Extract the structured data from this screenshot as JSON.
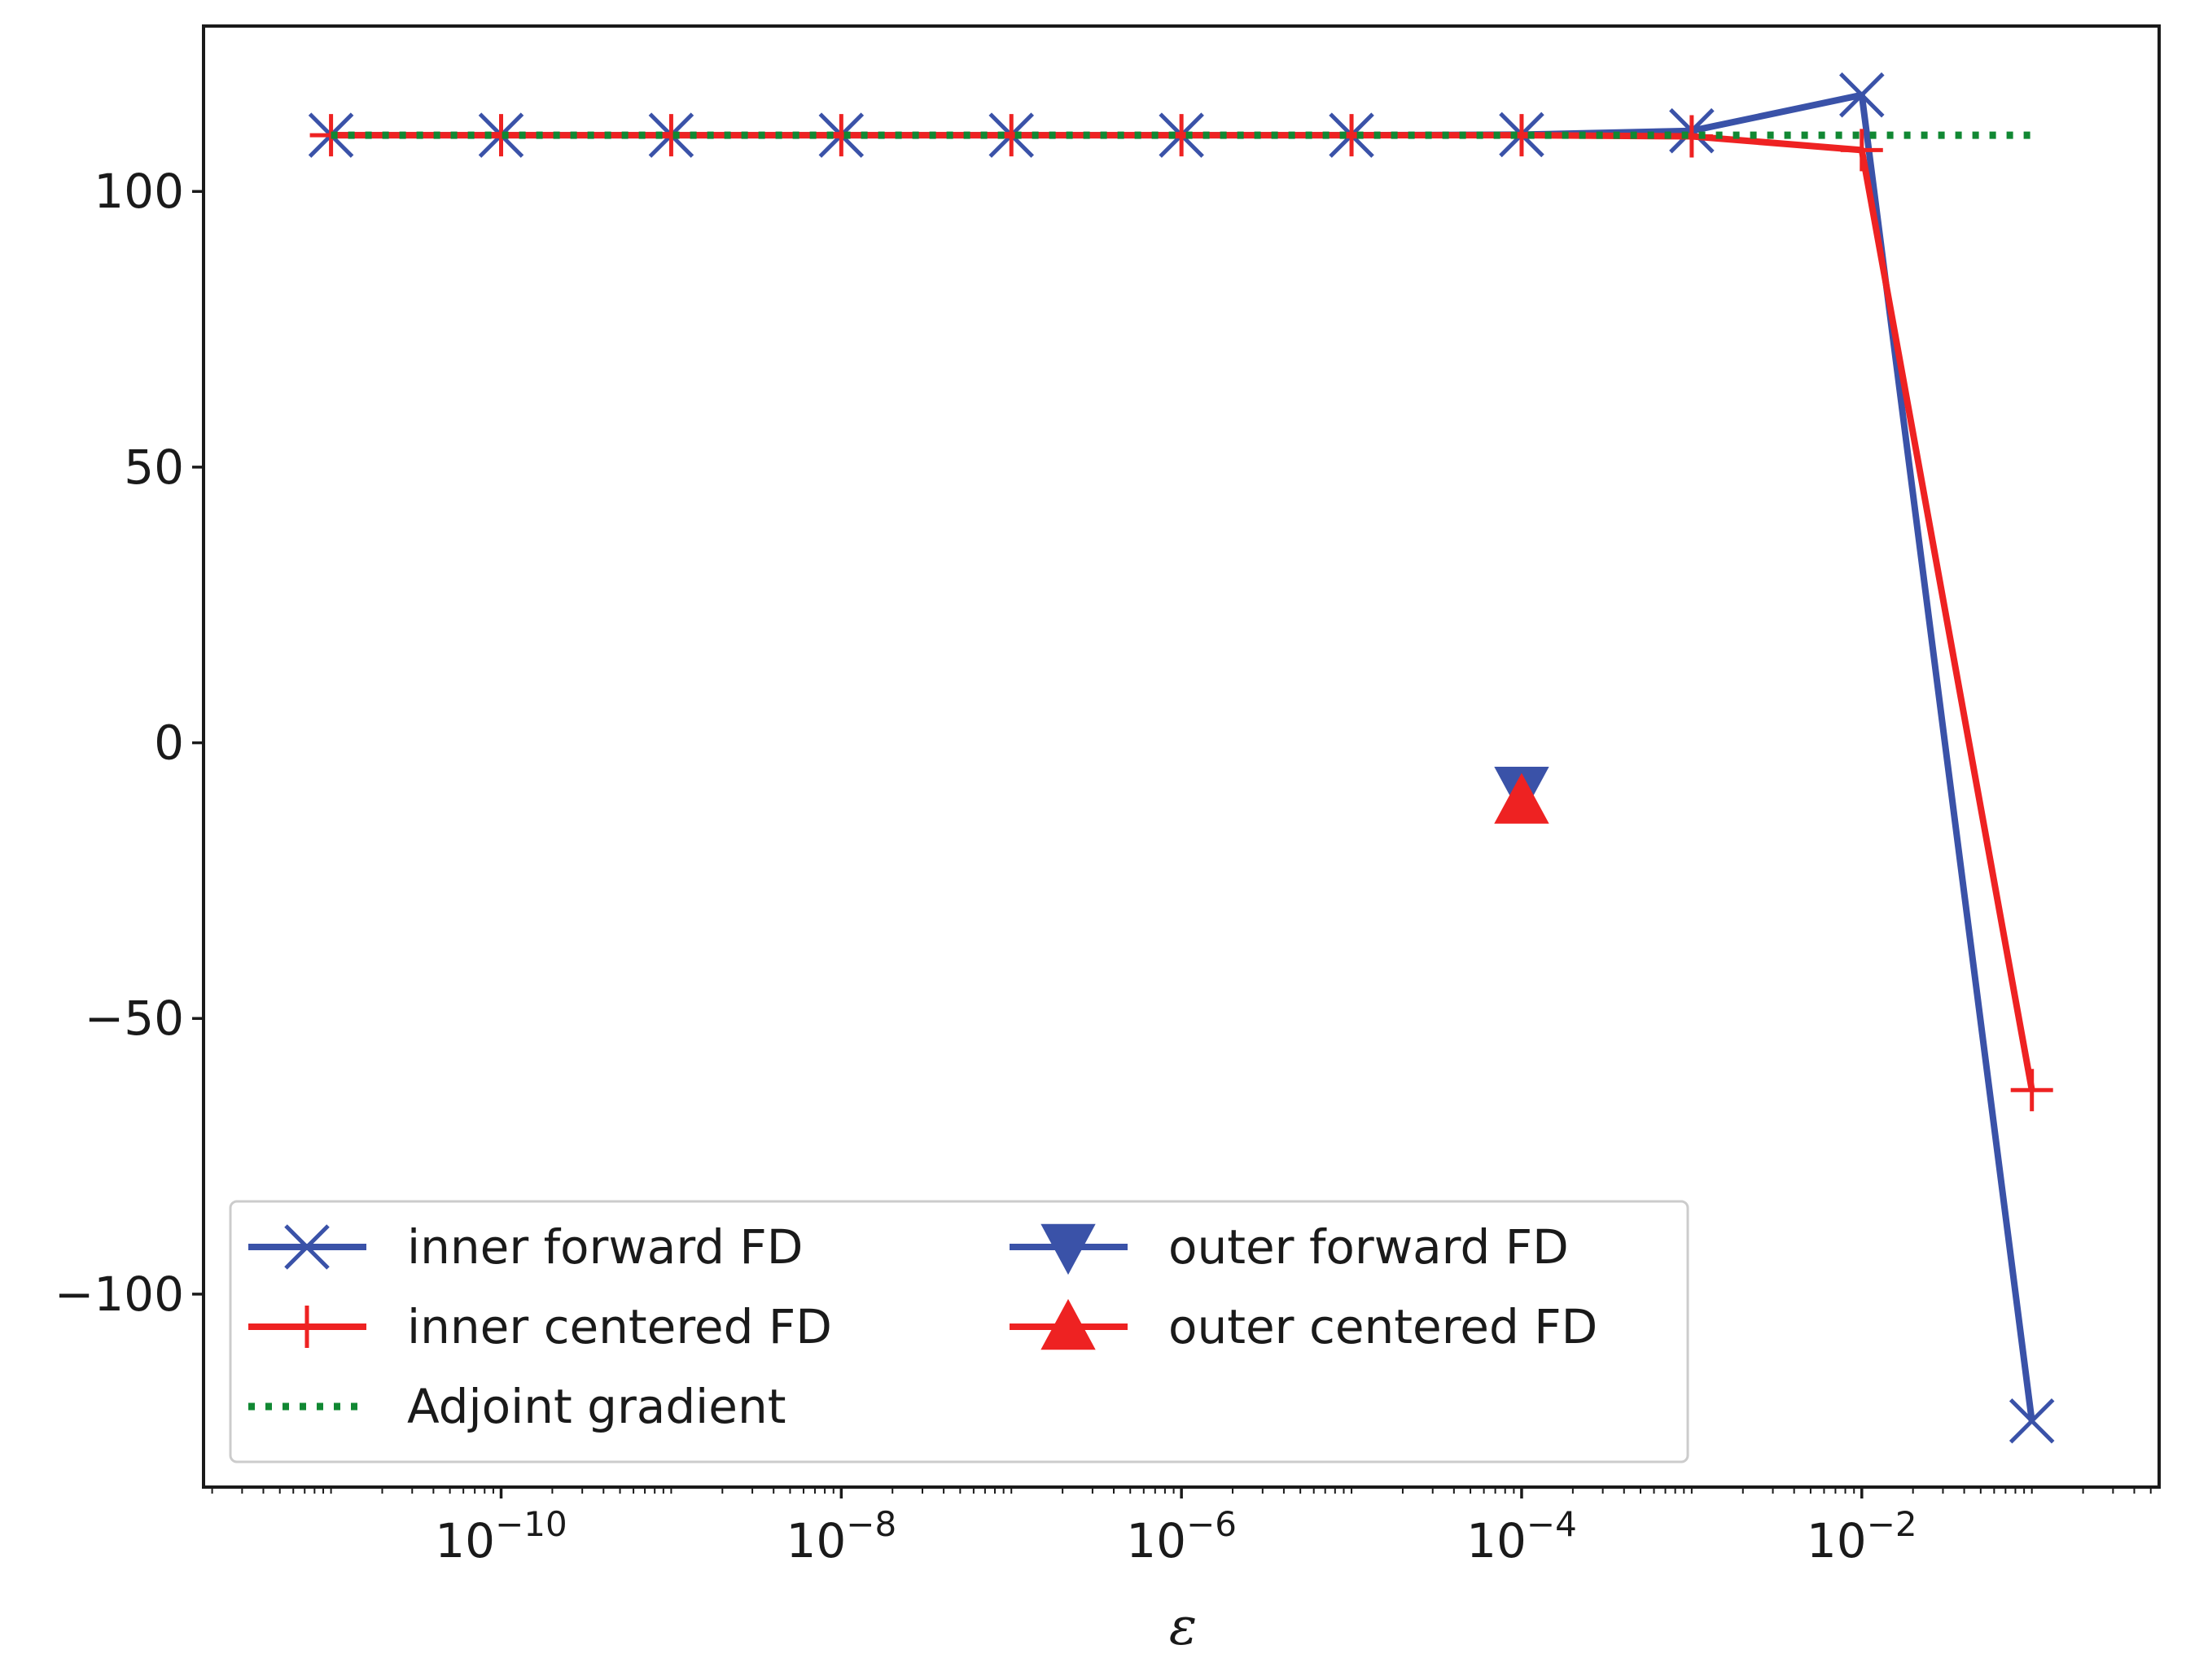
{
  "chart_data": {
    "type": "line",
    "title": "",
    "xlabel": "ε",
    "ylabel": "",
    "xscale": "log",
    "xlim": [
      1.78e-12,
      0.56
    ],
    "ylim": [
      -135,
      130
    ],
    "grid": false,
    "legend": {
      "placement": "bottom-left",
      "columns": 2
    },
    "x_ticks": [
      {
        "value": 1e-10,
        "base": "10",
        "exp": "−10"
      },
      {
        "value": 1e-08,
        "base": "10",
        "exp": "−8"
      },
      {
        "value": 1e-06,
        "base": "10",
        "exp": "−6"
      },
      {
        "value": 0.0001,
        "base": "10",
        "exp": "−4"
      },
      {
        "value": 0.01,
        "base": "10",
        "exp": "−2"
      }
    ],
    "y_ticks": [
      {
        "value": 100,
        "label": "100"
      },
      {
        "value": 50,
        "label": "50"
      },
      {
        "value": 0,
        "label": "0"
      },
      {
        "value": -50,
        "label": "−50"
      },
      {
        "value": -100,
        "label": "−100"
      }
    ],
    "series": [
      {
        "name": "inner forward FD",
        "color": "#3a52a8",
        "marker": "x",
        "line": "solid",
        "x": [
          1e-11,
          1e-10,
          1e-09,
          1e-08,
          1e-07,
          1e-06,
          1e-05,
          0.0001,
          0.001,
          0.01,
          0.1
        ],
        "y": [
          110.2,
          110.2,
          110.2,
          110.2,
          110.2,
          110.2,
          110.2,
          110.3,
          111.0,
          117.5,
          -123.0
        ]
      },
      {
        "name": "inner centered FD",
        "color": "#ee2222",
        "marker": "plus",
        "line": "solid",
        "x": [
          1e-11,
          1e-10,
          1e-09,
          1e-08,
          1e-07,
          1e-06,
          1e-05,
          0.0001,
          0.001,
          0.01,
          0.1
        ],
        "y": [
          110.2,
          110.2,
          110.2,
          110.2,
          110.2,
          110.2,
          110.2,
          110.2,
          110.0,
          107.5,
          -63.0
        ]
      },
      {
        "name": "Adjoint gradient",
        "color": "#118833",
        "marker": "none",
        "line": "dotted",
        "x": [
          1e-11,
          1e-10,
          1e-09,
          1e-08,
          1e-07,
          1e-06,
          1e-05,
          0.0001,
          0.001,
          0.01,
          0.1
        ],
        "y": [
          110.2,
          110.2,
          110.2,
          110.2,
          110.2,
          110.2,
          110.2,
          110.2,
          110.2,
          110.2,
          110.2
        ]
      },
      {
        "name": "outer forward FD",
        "color": "#3a52a8",
        "marker": "triangle-down",
        "line": "solid",
        "x": [
          0.0001
        ],
        "y": [
          -8.5
        ]
      },
      {
        "name": "outer centered FD",
        "color": "#ee2222",
        "marker": "triangle-up",
        "line": "solid",
        "x": [
          0.0001
        ],
        "y": [
          -10.5
        ]
      }
    ]
  }
}
